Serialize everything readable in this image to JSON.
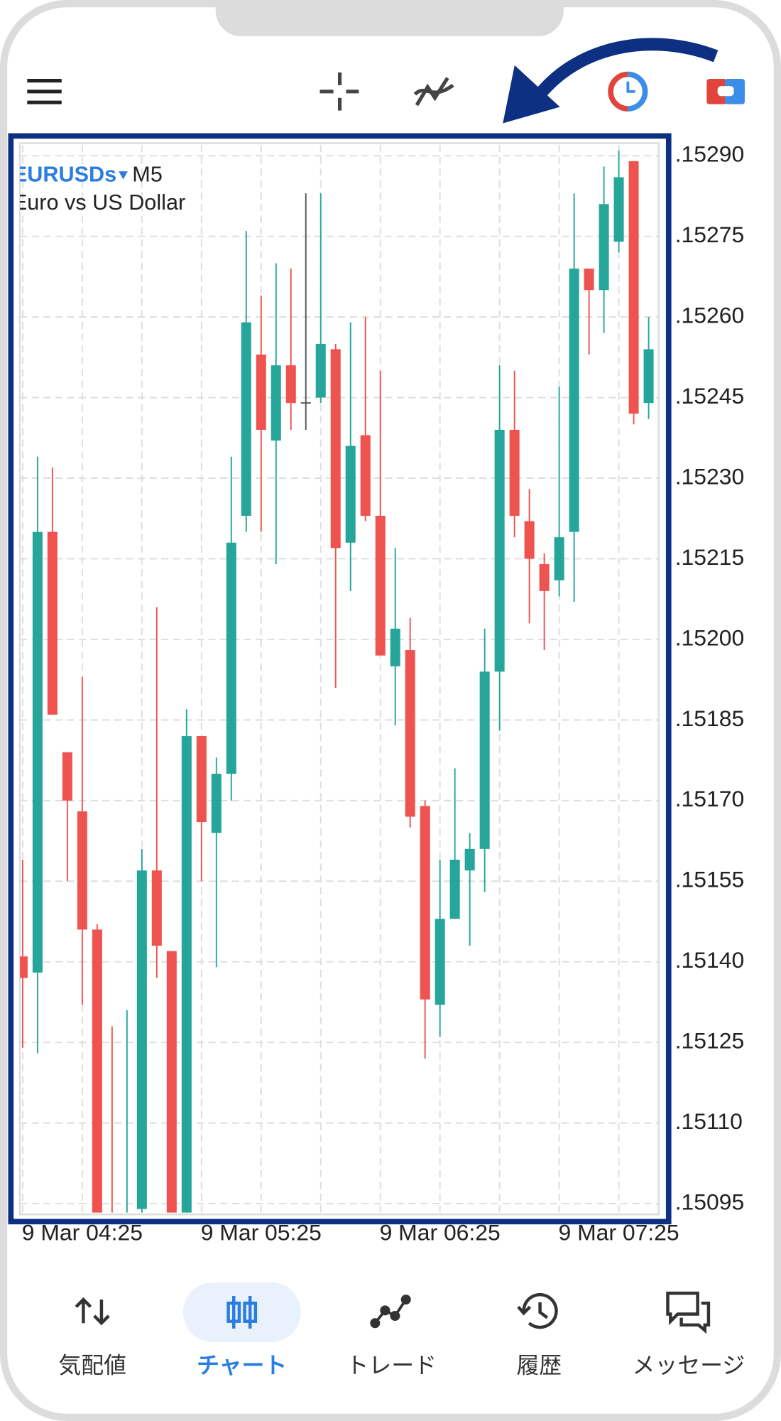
{
  "app": {
    "nav": [
      "気配値",
      "チャート",
      "トレード",
      "履歴",
      "メッセージ"
    ]
  },
  "chart_data": {
    "type": "candlestick",
    "symbol": "EURUSDs",
    "timeframe": "M5",
    "description": "Euro vs US Dollar",
    "up_color": "#26a69a",
    "down_color": "#ef5350",
    "neutral_color": "#555555",
    "grid": true,
    "categories": [
      null,
      null,
      null,
      null,
      "9 Mar 04:25",
      null,
      null,
      null,
      null,
      null,
      null,
      null,
      null,
      null,
      null,
      null,
      "9 Mar 05:25",
      null,
      null,
      null,
      null,
      null,
      null,
      null,
      null,
      null,
      null,
      null,
      "9 Mar 06:25",
      null,
      null,
      null,
      null,
      null,
      null,
      null,
      null,
      null,
      null,
      null,
      "9 Mar 07:25",
      null,
      null
    ],
    "open": [
      0.15141,
      0.15138,
      0.1522,
      0.15179,
      0.15168,
      0.15146,
      0.15088,
      0.1508,
      0.15094,
      0.15157,
      0.15142,
      0.15092,
      0.15182,
      0.15164,
      0.15175,
      0.15223,
      0.15253,
      0.15237,
      0.15251,
      0.15244,
      0.15245,
      0.15254,
      0.15218,
      0.15238,
      0.15223,
      0.15195,
      0.15198,
      0.15169,
      0.15132,
      0.15148,
      0.15157,
      0.15161,
      0.15194,
      0.15239,
      0.15222,
      0.15214,
      0.15211,
      0.1522,
      0.15269,
      0.15265,
      0.15274,
      0.15289,
      0.15244
    ],
    "high": [
      0.15159,
      0.15234,
      0.15232,
      0.15179,
      0.15193,
      0.15147,
      0.15128,
      0.15131,
      0.15161,
      0.15206,
      0.15142,
      0.15187,
      0.15182,
      0.15178,
      0.15234,
      0.15276,
      0.15264,
      0.1527,
      0.15269,
      0.15283,
      0.15283,
      0.15255,
      0.15259,
      0.1526,
      0.1525,
      0.15217,
      0.15204,
      0.1517,
      0.15159,
      0.15176,
      0.15164,
      0.15202,
      0.15251,
      0.1525,
      0.15228,
      0.15216,
      0.15247,
      0.15283,
      0.15269,
      0.15288,
      0.15291,
      0.15289,
      0.1526
    ],
    "low": [
      0.15124,
      0.15123,
      0.15186,
      0.15155,
      0.15132,
      0.15085,
      0.15075,
      0.15075,
      0.1509,
      0.15137,
      0.15085,
      0.15088,
      0.15155,
      0.15139,
      0.1517,
      0.1522,
      0.1522,
      0.15214,
      0.15239,
      0.15239,
      0.15244,
      0.15191,
      0.15209,
      0.15222,
      0.15197,
      0.15184,
      0.15165,
      0.15122,
      0.15126,
      0.15148,
      0.15143,
      0.15153,
      0.15183,
      0.15219,
      0.15203,
      0.15198,
      0.15208,
      0.15207,
      0.15253,
      0.15257,
      0.15272,
      0.1524,
      0.15241
    ],
    "close": [
      0.15137,
      0.1522,
      0.15186,
      0.1517,
      0.15146,
      0.1509,
      0.1508,
      0.1509,
      0.15157,
      0.15143,
      0.1509,
      0.15182,
      0.15166,
      0.15175,
      0.15218,
      0.15259,
      0.15239,
      0.15251,
      0.15244,
      0.15244,
      0.15255,
      0.15217,
      0.15236,
      0.15223,
      0.15197,
      0.15202,
      0.15167,
      0.15133,
      0.15148,
      0.15159,
      0.15161,
      0.15194,
      0.15239,
      0.15223,
      0.15215,
      0.15209,
      0.15219,
      0.15269,
      0.15265,
      0.15281,
      0.15286,
      0.15242,
      0.15254
    ],
    "ylim": [
      0.15093,
      0.15292
    ],
    "yticks": [
      {
        "value": 0.1529,
        "label": ".15290"
      },
      {
        "value": 0.15275,
        "label": ".15275"
      },
      {
        "value": 0.1526,
        "label": ".15260"
      },
      {
        "value": 0.15245,
        "label": ".15245"
      },
      {
        "value": 0.1523,
        "label": ".15230"
      },
      {
        "value": 0.15215,
        "label": ".15215"
      },
      {
        "value": 0.152,
        "label": ".15200"
      },
      {
        "value": 0.15185,
        "label": ".15185"
      },
      {
        "value": 0.1517,
        "label": ".15170"
      },
      {
        "value": 0.15155,
        "label": ".15155"
      },
      {
        "value": 0.1514,
        "label": ".15140"
      },
      {
        "value": 0.15125,
        "label": ".15125"
      },
      {
        "value": 0.1511,
        "label": ".15110"
      },
      {
        "value": 0.15095,
        "label": ".15095"
      }
    ]
  }
}
